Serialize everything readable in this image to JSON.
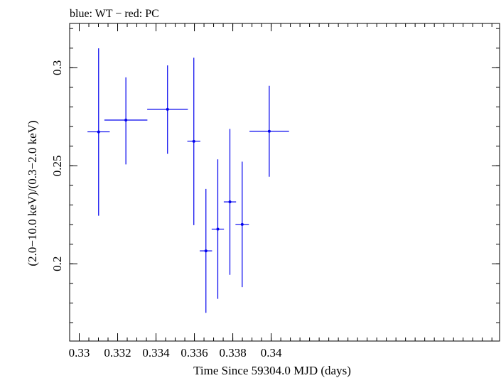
{
  "chart_data": {
    "type": "scatter",
    "title": "blue: WT − red: PC",
    "xlabel": "Time Since 59304.0 MJD (days)",
    "ylabel": "(2.0−10.0 keV)/(0.3−2.0 keV)",
    "xlim": [
      0.3295,
      0.3519
    ],
    "ylim": [
      0.1606,
      0.3226
    ],
    "x_ticks": [
      {
        "value": 0.33,
        "label": "0.33"
      },
      {
        "value": 0.332,
        "label": "0.332"
      },
      {
        "value": 0.334,
        "label": "0.334"
      },
      {
        "value": 0.336,
        "label": "0.336"
      },
      {
        "value": 0.338,
        "label": "0.338"
      },
      {
        "value": 0.34,
        "label": "0.34"
      }
    ],
    "y_ticks": [
      {
        "value": 0.2,
        "label": "0.2"
      },
      {
        "value": 0.25,
        "label": "0.25"
      },
      {
        "value": 0.3,
        "label": "0.3"
      }
    ],
    "x_minor_step": 0.0005,
    "y_minor_step": 0.01,
    "grid": false,
    "series": [
      {
        "color": "#0000ee",
        "points": [
          {
            "x": 0.33101,
            "xerr": 0.00058,
            "y": 0.2673,
            "yerr_lo": 0.0428,
            "yerr_hi": 0.0426
          },
          {
            "x": 0.33243,
            "xerr": 0.00112,
            "y": 0.2733,
            "yerr_lo": 0.0226,
            "yerr_hi": 0.0218
          },
          {
            "x": 0.3346,
            "xerr": 0.00106,
            "y": 0.2788,
            "yerr_lo": 0.0227,
            "yerr_hi": 0.0224
          },
          {
            "x": 0.33597,
            "xerr": 0.00034,
            "y": 0.2625,
            "yerr_lo": 0.0428,
            "yerr_hi": 0.0426
          },
          {
            "x": 0.3366,
            "xerr": 0.00032,
            "y": 0.2066,
            "yerr_lo": 0.0316,
            "yerr_hi": 0.0316
          },
          {
            "x": 0.33722,
            "xerr": 0.00032,
            "y": 0.2177,
            "yerr_lo": 0.0356,
            "yerr_hi": 0.0356
          },
          {
            "x": 0.33785,
            "xerr": 0.00032,
            "y": 0.2316,
            "yerr_lo": 0.0372,
            "yerr_hi": 0.0372
          },
          {
            "x": 0.33849,
            "xerr": 0.00035,
            "y": 0.2201,
            "yerr_lo": 0.032,
            "yerr_hi": 0.032
          },
          {
            "x": 0.3399,
            "xerr": 0.00103,
            "y": 0.2676,
            "yerr_lo": 0.0232,
            "yerr_hi": 0.0232
          }
        ]
      }
    ]
  }
}
